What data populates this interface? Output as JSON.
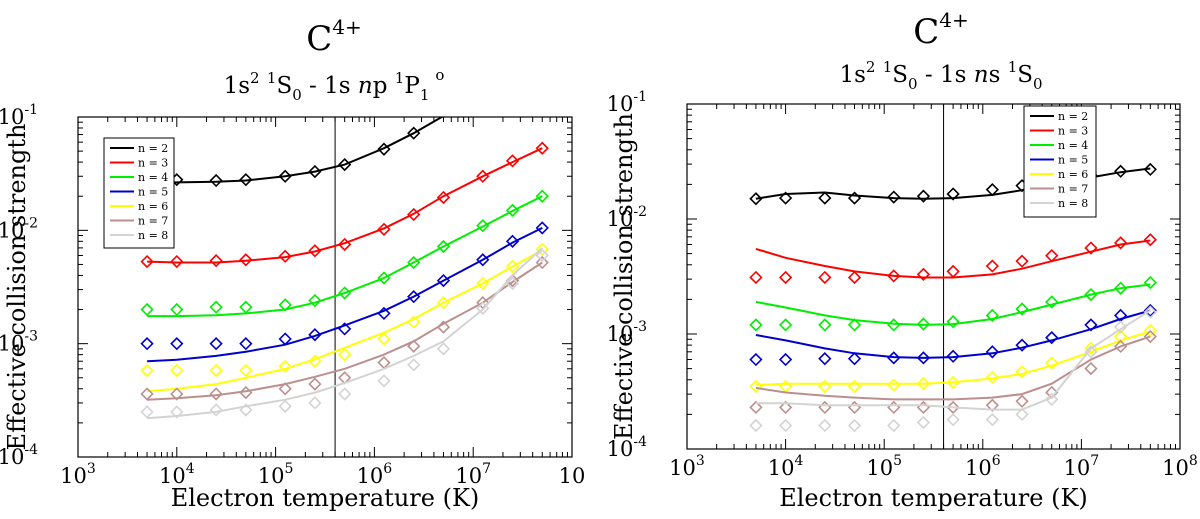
{
  "chart_data": [
    {
      "type": "line",
      "title": "C",
      "title_sup": "4+",
      "subtitle": {
        "a": "1s",
        "a_sup": "2",
        "b_sup": "1",
        "c": "S",
        "c_sub": "0",
        "d": " - 1s ",
        "e": "n",
        "f": "p ",
        "g_sup": "1",
        "h": "P",
        "h_sub": "1",
        "h_sup": "o"
      },
      "xlabel": "Electron temperature (K)",
      "ylabel": "Effective collision strength",
      "xscale": "log",
      "yscale": "log",
      "xlim_exp": [
        3,
        8
      ],
      "ylim_exp": [
        -4,
        -1
      ],
      "x_tick_labels": [
        {
          "base": "10",
          "exp": "3"
        },
        {
          "base": "10",
          "exp": "4"
        },
        {
          "base": "10",
          "exp": "5"
        },
        {
          "base": "10",
          "exp": "6"
        },
        {
          "base": "10",
          "exp": "7"
        },
        {
          "base": "10",
          "exp": ""
        }
      ],
      "y_tick_labels": [
        {
          "base": "10",
          "exp": "-4"
        },
        {
          "base": "10",
          "exp": "-3"
        },
        {
          "base": "10",
          "exp": "-2"
        },
        {
          "base": "10",
          "exp": "-1"
        }
      ],
      "vline_x": 400000,
      "legend": "top-left",
      "temperatures": [
        5000,
        10000,
        25000,
        50000,
        125000,
        250000,
        500000,
        1250000,
        2500000,
        5000000,
        12500000,
        25000000,
        50000000
      ],
      "series": [
        {
          "name": "n = 2",
          "color": "#000000",
          "curve_x": [
            5000,
            10000,
            25000,
            50000,
            125000,
            250000,
            500000,
            1250000,
            2500000,
            5000000
          ],
          "curve_y": [
            0.0265,
            0.0265,
            0.0268,
            0.0275,
            0.03,
            0.033,
            0.038,
            0.053,
            0.072,
            0.102
          ],
          "points": [
            null,
            0.028,
            0.0275,
            0.028,
            0.03,
            0.033,
            0.038,
            0.052,
            0.072,
            null,
            null,
            null,
            null
          ]
        },
        {
          "name": "n = 3",
          "color": "#ff0000",
          "curve_x": [
            5000,
            10000,
            25000,
            50000,
            125000,
            250000,
            500000,
            1250000,
            2500000,
            5000000,
            12500000,
            25000000,
            50000000
          ],
          "curve_y": [
            0.0053,
            0.0052,
            0.0052,
            0.0054,
            0.0058,
            0.0065,
            0.0077,
            0.0104,
            0.014,
            0.02,
            0.03,
            0.04,
            0.053
          ],
          "points": [
            0.0053,
            0.0053,
            0.0054,
            0.0055,
            0.0059,
            0.0066,
            0.0075,
            0.0102,
            0.0138,
            0.0195,
            0.03,
            0.041,
            0.053
          ]
        },
        {
          "name": "n = 4",
          "color": "#00ee00",
          "curve_x": [
            5000,
            10000,
            25000,
            50000,
            125000,
            250000,
            500000,
            1250000,
            2500000,
            5000000,
            12500000,
            25000000,
            50000000
          ],
          "curve_y": [
            0.00175,
            0.00175,
            0.00178,
            0.00185,
            0.002,
            0.0023,
            0.0028,
            0.0038,
            0.0052,
            0.0072,
            0.0108,
            0.0148,
            0.02
          ],
          "points": [
            0.002,
            0.002,
            0.0021,
            0.0021,
            0.0022,
            0.0024,
            0.0028,
            0.0038,
            0.0052,
            0.0072,
            0.011,
            0.015,
            0.02
          ]
        },
        {
          "name": "n = 5",
          "color": "#0000cc",
          "curve_x": [
            5000,
            10000,
            25000,
            50000,
            125000,
            250000,
            500000,
            1250000,
            2500000,
            5000000,
            12500000,
            25000000,
            50000000
          ],
          "curve_y": [
            0.0007,
            0.00072,
            0.00078,
            0.00085,
            0.00098,
            0.00117,
            0.00145,
            0.00195,
            0.0026,
            0.0036,
            0.0055,
            0.0078,
            0.0105
          ],
          "points": [
            0.001,
            0.001,
            0.001,
            0.001,
            0.0011,
            0.0012,
            0.00135,
            0.00185,
            0.0026,
            0.0036,
            0.0055,
            0.008,
            0.0105
          ]
        },
        {
          "name": "n = 6",
          "color": "#ffff00",
          "curve_x": [
            5000,
            10000,
            25000,
            50000,
            125000,
            250000,
            500000,
            1250000,
            2500000,
            5000000,
            12500000,
            25000000,
            50000000
          ],
          "curve_y": [
            0.00038,
            0.0004,
            0.00044,
            0.0005,
            0.0006,
            0.00073,
            0.00092,
            0.00125,
            0.00165,
            0.0023,
            0.0034,
            0.0048,
            0.0067
          ],
          "points": [
            0.00058,
            0.00058,
            0.00058,
            0.00058,
            0.00063,
            0.0007,
            0.0008,
            0.0011,
            0.00155,
            0.0023,
            0.0034,
            0.0048,
            0.0068
          ]
        },
        {
          "name": "n = 7",
          "color": "#bc8f8f",
          "curve_x": [
            5000,
            10000,
            25000,
            50000,
            125000,
            250000,
            500000,
            1250000,
            2500000,
            5000000,
            12500000,
            25000000,
            50000000
          ],
          "curve_y": [
            0.00032,
            0.00033,
            0.00035,
            0.00038,
            0.00044,
            0.00051,
            0.0006,
            0.0008,
            0.00105,
            0.0015,
            0.0023,
            0.0035,
            0.0052
          ],
          "points": [
            0.00036,
            0.00036,
            0.00036,
            0.00037,
            0.0004,
            0.00044,
            0.0005,
            0.00068,
            0.00095,
            0.0014,
            0.0023,
            0.0036,
            0.0052
          ]
        },
        {
          "name": "n = 8",
          "color": "#d3d3d3",
          "curve_x": [
            5000,
            10000,
            25000,
            50000,
            125000,
            250000,
            500000,
            1250000,
            2500000,
            5000000,
            12500000,
            25000000,
            50000000
          ],
          "curve_y": [
            0.00022,
            0.00023,
            0.00025,
            0.00028,
            0.00032,
            0.00037,
            0.00045,
            0.0006,
            0.00078,
            0.00105,
            0.002,
            0.004,
            0.007
          ],
          "points": [
            0.00025,
            0.00025,
            0.00026,
            0.00026,
            0.00028,
            0.0003,
            0.00036,
            0.00047,
            0.00065,
            0.0009,
            0.00205,
            0.0034,
            0.006
          ]
        }
      ]
    },
    {
      "type": "line",
      "title": "C",
      "title_sup": "4+",
      "subtitle": {
        "a": "1s",
        "a_sup": "2",
        "b_sup": "1",
        "c": "S",
        "c_sub": "0",
        "d": " - 1s ",
        "e": "n",
        "f": "s ",
        "g_sup": "1",
        "h": "S",
        "h_sub": "0",
        "h_sup": ""
      },
      "xlabel": "Electron temperature (K)",
      "ylabel": "Effective collision strength",
      "xscale": "log",
      "yscale": "log",
      "xlim_exp": [
        3,
        8
      ],
      "ylim_exp": [
        -4,
        -1
      ],
      "x_tick_labels": [
        {
          "base": "10",
          "exp": "3"
        },
        {
          "base": "10",
          "exp": "4"
        },
        {
          "base": "10",
          "exp": "5"
        },
        {
          "base": "10",
          "exp": "6"
        },
        {
          "base": "10",
          "exp": "7"
        },
        {
          "base": "10",
          "exp": "8"
        }
      ],
      "y_tick_labels": [
        {
          "base": "10",
          "exp": "-4"
        },
        {
          "base": "10",
          "exp": "-3"
        },
        {
          "base": "10",
          "exp": "-2"
        },
        {
          "base": "10",
          "exp": "-1"
        }
      ],
      "vline_x": 400000,
      "legend": "top-right",
      "temperatures": [
        5000,
        10000,
        25000,
        50000,
        125000,
        250000,
        500000,
        1250000,
        2500000,
        5000000,
        12500000,
        25000000,
        50000000
      ],
      "series": [
        {
          "name": "n = 2",
          "color": "#000000",
          "curve_x": [
            5000,
            10000,
            25000,
            50000,
            125000,
            250000,
            500000,
            1250000,
            2500000,
            5000000,
            12500000,
            25000000,
            50000000
          ],
          "curve_y": [
            0.015,
            0.0165,
            0.017,
            0.016,
            0.0152,
            0.015,
            0.0152,
            0.0162,
            0.0178,
            0.02,
            0.023,
            0.0255,
            0.0275
          ],
          "points": [
            0.015,
            0.0152,
            0.0152,
            0.0152,
            0.0155,
            0.0158,
            0.0165,
            0.018,
            0.0195,
            0.0215,
            0.024,
            0.026,
            0.027
          ]
        },
        {
          "name": "n = 3",
          "color": "#ff0000",
          "curve_x": [
            5000,
            10000,
            25000,
            50000,
            125000,
            250000,
            500000,
            1250000,
            2500000,
            5000000,
            12500000,
            25000000,
            50000000
          ],
          "curve_y": [
            0.0055,
            0.0046,
            0.0039,
            0.0035,
            0.0032,
            0.0031,
            0.0031,
            0.0033,
            0.0037,
            0.0043,
            0.0052,
            0.006,
            0.0065
          ],
          "points": [
            0.0031,
            0.0031,
            0.0031,
            0.0031,
            0.0032,
            0.0033,
            0.0035,
            0.0039,
            0.0043,
            0.0048,
            0.0056,
            0.0062,
            0.0066
          ]
        },
        {
          "name": "n = 4",
          "color": "#00ee00",
          "curve_x": [
            5000,
            10000,
            25000,
            50000,
            125000,
            250000,
            500000,
            1250000,
            2500000,
            5000000,
            12500000,
            25000000,
            50000000
          ],
          "curve_y": [
            0.0019,
            0.0017,
            0.00145,
            0.00132,
            0.00123,
            0.0012,
            0.00122,
            0.00135,
            0.00155,
            0.0018,
            0.0022,
            0.0025,
            0.0027
          ],
          "points": [
            0.0012,
            0.0012,
            0.0012,
            0.0012,
            0.0012,
            0.00122,
            0.00128,
            0.00145,
            0.00165,
            0.0019,
            0.0022,
            0.0025,
            0.0028
          ]
        },
        {
          "name": "n = 5",
          "color": "#0000cc",
          "curve_x": [
            5000,
            10000,
            25000,
            50000,
            125000,
            250000,
            500000,
            1250000,
            2500000,
            5000000,
            12500000,
            25000000,
            50000000
          ],
          "curve_y": [
            0.00098,
            0.00088,
            0.00075,
            0.00068,
            0.00063,
            0.00062,
            0.00063,
            0.00068,
            0.00076,
            0.00088,
            0.0011,
            0.00135,
            0.0016
          ],
          "points": [
            0.0006,
            0.0006,
            0.00061,
            0.00061,
            0.00062,
            0.00062,
            0.00064,
            0.0007,
            0.0008,
            0.00093,
            0.0012,
            0.00145,
            0.0016
          ]
        },
        {
          "name": "n = 6",
          "color": "#ffff00",
          "curve_x": [
            5000,
            10000,
            25000,
            50000,
            125000,
            250000,
            500000,
            1250000,
            2500000,
            5000000,
            12500000,
            25000000,
            50000000
          ],
          "curve_y": [
            0.00036,
            0.00037,
            0.00037,
            0.00037,
            0.00037,
            0.00037,
            0.00038,
            0.00041,
            0.00045,
            0.00053,
            0.0007,
            0.00088,
            0.00105
          ],
          "points": [
            0.00035,
            0.00035,
            0.00035,
            0.00035,
            0.00036,
            0.00037,
            0.00038,
            0.00042,
            0.00047,
            0.00056,
            0.00075,
            0.00095,
            0.00107
          ]
        },
        {
          "name": "n = 7",
          "color": "#bc8f8f",
          "curve_x": [
            5000,
            10000,
            25000,
            50000,
            125000,
            250000,
            500000,
            1250000,
            2500000,
            5000000,
            12500000,
            25000000,
            50000000
          ],
          "curve_y": [
            0.00034,
            0.00031,
            0.00029,
            0.00028,
            0.00027,
            0.00027,
            0.00027,
            0.00028,
            0.0003,
            0.00037,
            0.0006,
            0.00078,
            0.00095
          ],
          "points": [
            0.00023,
            0.00023,
            0.00023,
            0.00023,
            0.00023,
            0.00023,
            0.00023,
            0.00024,
            0.00026,
            0.00031,
            0.0005,
            0.00078,
            0.00095
          ]
        },
        {
          "name": "n = 8",
          "color": "#d3d3d3",
          "curve_x": [
            5000,
            10000,
            25000,
            50000,
            125000,
            250000,
            500000,
            1250000,
            2500000,
            5000000,
            12500000,
            25000000,
            50000000
          ],
          "curve_y": [
            0.00025,
            0.00025,
            0.00024,
            0.00024,
            0.00024,
            0.00024,
            0.00023,
            0.00022,
            0.00022,
            0.00028,
            0.00075,
            0.0011,
            0.0016
          ],
          "points": [
            0.00016,
            0.00016,
            0.00016,
            0.00016,
            0.00016,
            0.00017,
            0.00018,
            0.00018,
            0.0002,
            0.00027,
            0.0007,
            0.00115,
            0.00155
          ]
        }
      ]
    }
  ]
}
